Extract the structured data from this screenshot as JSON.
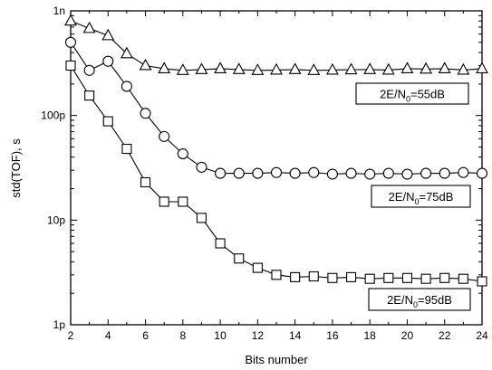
{
  "chart_data": {
    "type": "line",
    "xlabel": "Bits number",
    "ylabel": "std(TOF), s",
    "xlim": [
      2,
      24
    ],
    "ylim": [
      1e-12,
      1e-09
    ],
    "yscale": "log",
    "grid": false,
    "x_ticks": [
      2,
      4,
      6,
      8,
      10,
      12,
      14,
      16,
      18,
      20,
      22,
      24
    ],
    "x_tick_labels": [
      "2",
      "4",
      "6",
      "8",
      "10",
      "12",
      "14",
      "16",
      "18",
      "20",
      "22",
      "24"
    ],
    "y_ticks": [
      1e-12,
      1e-11,
      1e-10,
      1e-09
    ],
    "y_tick_labels": [
      "1p",
      "10p",
      "100p",
      "1n"
    ],
    "series": [
      {
        "name": "2E/N0=55dB",
        "label_main": "2E/N",
        "label_sub": "0",
        "label_tail": "=55dB",
        "marker": "triangle",
        "x": [
          2,
          3,
          4,
          5,
          6,
          7,
          8,
          9,
          10,
          11,
          12,
          13,
          14,
          15,
          16,
          17,
          18,
          19,
          20,
          21,
          22,
          23,
          24
        ],
        "y": [
          8e-10,
          6.8e-10,
          5.8e-10,
          3.9e-10,
          3e-10,
          2.8e-10,
          2.7e-10,
          2.75e-10,
          2.8e-10,
          2.75e-10,
          2.7e-10,
          2.72e-10,
          2.75e-10,
          2.7e-10,
          2.72e-10,
          2.74e-10,
          2.75e-10,
          2.72e-10,
          2.8e-10,
          2.78e-10,
          2.8e-10,
          2.72e-10,
          2.8e-10
        ]
      },
      {
        "name": "2E/N0=75dB",
        "label_main": "2E/N",
        "label_sub": "0",
        "label_tail": "=75dB",
        "marker": "circle",
        "x": [
          2,
          3,
          4,
          5,
          6,
          7,
          8,
          9,
          10,
          11,
          12,
          13,
          14,
          15,
          16,
          17,
          18,
          19,
          20,
          21,
          22,
          23,
          24
        ],
        "y": [
          5e-10,
          2.7e-10,
          3.3e-10,
          1.9e-10,
          1.05e-10,
          6.3e-11,
          4.3e-11,
          3.2e-11,
          2.8e-11,
          2.8e-11,
          2.8e-11,
          2.85e-11,
          2.8e-11,
          2.85e-11,
          2.75e-11,
          2.8e-11,
          2.75e-11,
          2.8e-11,
          2.75e-11,
          2.8e-11,
          2.8e-11,
          2.85e-11,
          2.8e-11
        ]
      },
      {
        "name": "2E/N0=95dB",
        "label_main": "2E/N",
        "label_sub": "0",
        "label_tail": "=95dB",
        "marker": "square",
        "x": [
          2,
          3,
          4,
          5,
          6,
          7,
          8,
          9,
          10,
          11,
          12,
          13,
          14,
          15,
          16,
          17,
          18,
          19,
          20,
          21,
          22,
          23,
          24
        ],
        "y": [
          3e-10,
          1.55e-10,
          8.8e-11,
          4.8e-11,
          2.3e-11,
          1.5e-11,
          1.5e-11,
          1.05e-11,
          6e-12,
          4.3e-12,
          3.5e-12,
          3e-12,
          2.85e-12,
          2.9e-12,
          2.8e-12,
          2.85e-12,
          2.75e-12,
          2.8e-12,
          2.8e-12,
          2.75e-12,
          2.8e-12,
          2.75e-12,
          2.6e-12
        ]
      }
    ]
  }
}
